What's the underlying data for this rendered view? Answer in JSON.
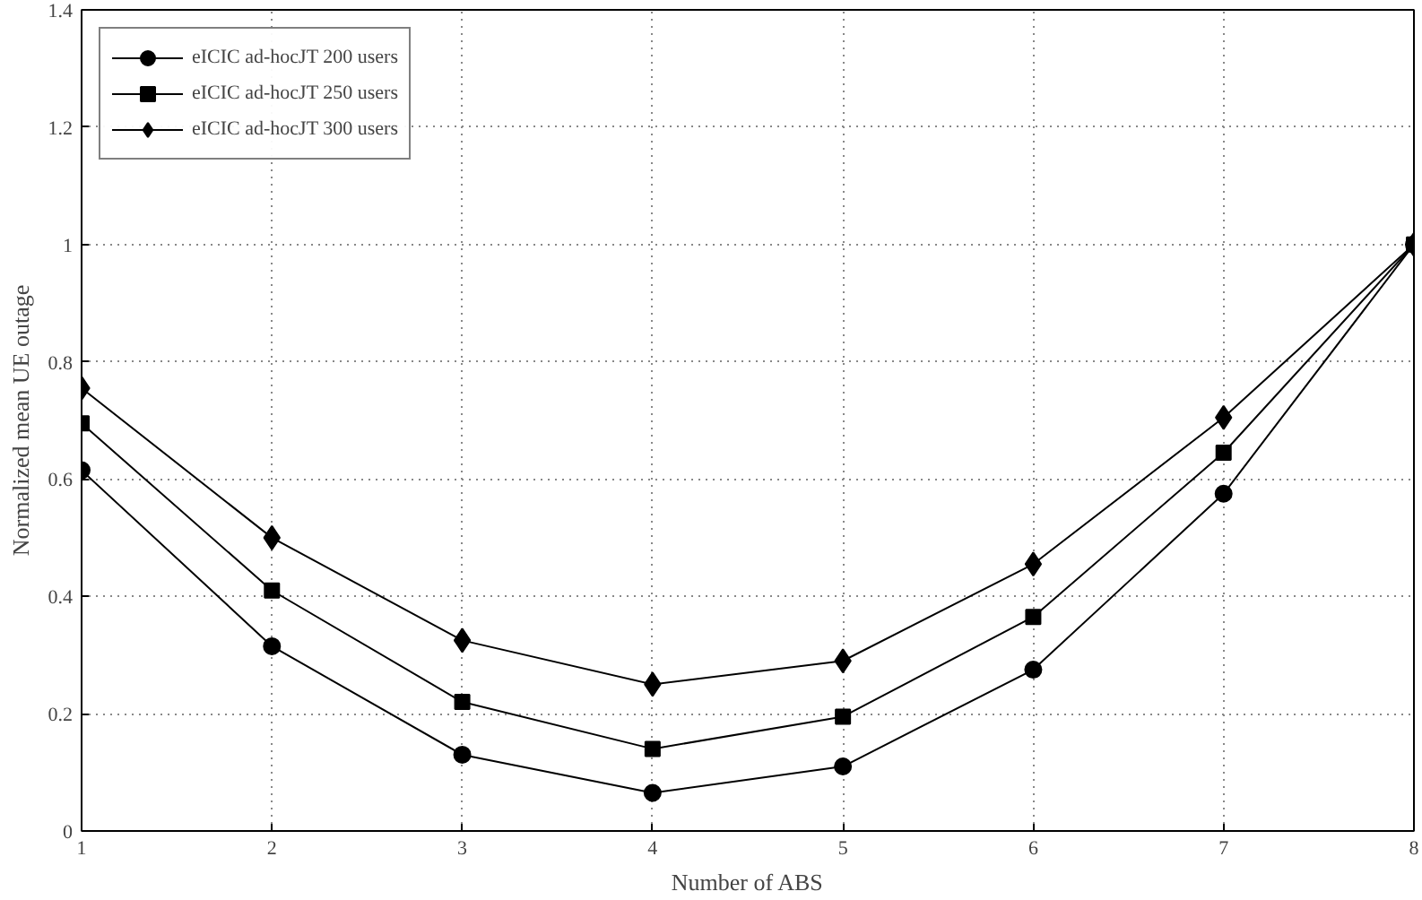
{
  "chart_data": {
    "type": "line",
    "xlabel": "Number of ABS",
    "ylabel": "Normalized mean UE outage",
    "x": [
      1,
      2,
      3,
      4,
      5,
      6,
      7,
      8
    ],
    "series": [
      {
        "name": "eICIC ad-hocJT 200 users",
        "color": "#000000",
        "marker": "circle",
        "values": [
          0.615,
          0.315,
          0.13,
          0.065,
          0.11,
          0.275,
          0.575,
          1.0
        ]
      },
      {
        "name": "eICIC ad-hocJT 250 users",
        "color": "#000000",
        "marker": "square",
        "values": [
          0.695,
          0.41,
          0.22,
          0.14,
          0.195,
          0.365,
          0.645,
          1.0
        ]
      },
      {
        "name": "eICIC ad-hocJT 300 users",
        "color": "#000000",
        "marker": "diamond",
        "values": [
          0.755,
          0.5,
          0.325,
          0.25,
          0.29,
          0.455,
          0.705,
          1.0
        ]
      }
    ],
    "xlim": [
      1,
      8
    ],
    "ylim": [
      0,
      1.4
    ],
    "xticks": [
      1,
      2,
      3,
      4,
      5,
      6,
      7,
      8
    ],
    "yticks": [
      0,
      0.2,
      0.4,
      0.6,
      0.8,
      1,
      1.2,
      1.4
    ],
    "grid": true,
    "legend": "top left",
    "line_style": "solid"
  }
}
